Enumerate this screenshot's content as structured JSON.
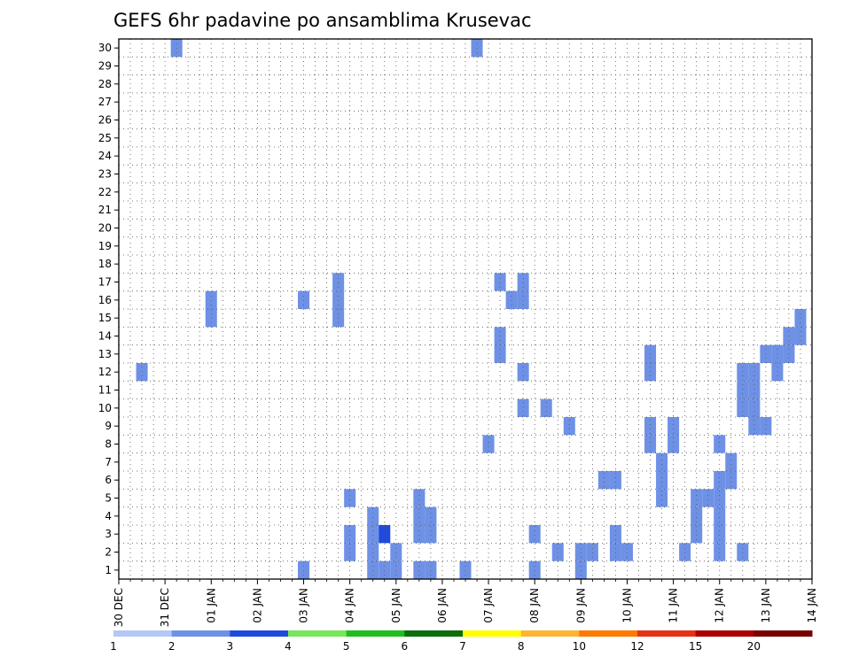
{
  "chart_data": {
    "type": "heatmap",
    "title": "GEFS 6hr padavine po ansamblima Krusevac",
    "y_ticks": [
      "1",
      "2",
      "3",
      "4",
      "5",
      "6",
      "7",
      "8",
      "9",
      "10",
      "11",
      "12",
      "13",
      "14",
      "15",
      "16",
      "17",
      "18",
      "19",
      "20",
      "21",
      "22",
      "23",
      "24",
      "25",
      "26",
      "27",
      "28",
      "29",
      "30"
    ],
    "x_ticks": [
      "30 DEC",
      "31 DEC",
      "01 JAN",
      "02 JAN",
      "03 JAN",
      "04 JAN",
      "05 JAN",
      "06 JAN",
      "07 JAN",
      "08 JAN",
      "09 JAN",
      "10 JAN",
      "11 JAN",
      "12 JAN",
      "13 JAN",
      "14 JAN"
    ],
    "grid": true,
    "legend": {
      "position": "bottom",
      "levels": [
        "1",
        "2",
        "3",
        "4",
        "5",
        "6",
        "7",
        "8",
        "10",
        "12",
        "15",
        "20"
      ],
      "colors": [
        "#b4c8f5",
        "#6e91e6",
        "#1e4bdc",
        "#78e65a",
        "#1ebe1e",
        "#0a6e0a",
        "#ffff00",
        "#ffb432",
        "#ff7800",
        "#e63214",
        "#aa0000",
        "#780000"
      ]
    },
    "time_unit": "6h steps from 00Z 30 DEC",
    "cells": [
      [
        2,
        12,
        1
      ],
      [
        5,
        30,
        1
      ],
      [
        8,
        15,
        1
      ],
      [
        8,
        16,
        1
      ],
      [
        16,
        1,
        1
      ],
      [
        16,
        16,
        1
      ],
      [
        19,
        15,
        1
      ],
      [
        19,
        16,
        1
      ],
      [
        19,
        17,
        1
      ],
      [
        20,
        2,
        1
      ],
      [
        20,
        3,
        1
      ],
      [
        20,
        5,
        1
      ],
      [
        22,
        1,
        1
      ],
      [
        22,
        2,
        1
      ],
      [
        22,
        3,
        1
      ],
      [
        22,
        4,
        1
      ],
      [
        23,
        1,
        1
      ],
      [
        23,
        3,
        2
      ],
      [
        24,
        1,
        1
      ],
      [
        24,
        2,
        1
      ],
      [
        26,
        1,
        1
      ],
      [
        26,
        3,
        1
      ],
      [
        26,
        4,
        1
      ],
      [
        26,
        5,
        1
      ],
      [
        27,
        1,
        1
      ],
      [
        27,
        3,
        1
      ],
      [
        27,
        4,
        1
      ],
      [
        30,
        1,
        1
      ],
      [
        31,
        30,
        1
      ],
      [
        32,
        8,
        1
      ],
      [
        33,
        13,
        1
      ],
      [
        33,
        14,
        1
      ],
      [
        33,
        17,
        1
      ],
      [
        34,
        16,
        1
      ],
      [
        35,
        10,
        1
      ],
      [
        35,
        12,
        1
      ],
      [
        35,
        16,
        1
      ],
      [
        35,
        17,
        1
      ],
      [
        36,
        1,
        1
      ],
      [
        36,
        3,
        1
      ],
      [
        37,
        10,
        1
      ],
      [
        38,
        2,
        1
      ],
      [
        39,
        9,
        1
      ],
      [
        40,
        2,
        1
      ],
      [
        40,
        1,
        1
      ],
      [
        41,
        2,
        1
      ],
      [
        42,
        6,
        1
      ],
      [
        43,
        2,
        1
      ],
      [
        43,
        3,
        1
      ],
      [
        43,
        6,
        1
      ],
      [
        44,
        2,
        1
      ],
      [
        46,
        8,
        1
      ],
      [
        46,
        9,
        1
      ],
      [
        46,
        12,
        1
      ],
      [
        46,
        13,
        1
      ],
      [
        47,
        5,
        1
      ],
      [
        47,
        6,
        1
      ],
      [
        47,
        7,
        1
      ],
      [
        48,
        8,
        1
      ],
      [
        48,
        9,
        1
      ],
      [
        49,
        2,
        1
      ],
      [
        50,
        3,
        1
      ],
      [
        50,
        4,
        1
      ],
      [
        50,
        5,
        1
      ],
      [
        51,
        5,
        1
      ],
      [
        52,
        2,
        1
      ],
      [
        52,
        3,
        1
      ],
      [
        52,
        4,
        1
      ],
      [
        52,
        5,
        1
      ],
      [
        52,
        6,
        1
      ],
      [
        52,
        8,
        1
      ],
      [
        53,
        6,
        1
      ],
      [
        53,
        7,
        1
      ],
      [
        54,
        2,
        1
      ],
      [
        54,
        10,
        1
      ],
      [
        54,
        11,
        1
      ],
      [
        54,
        12,
        1
      ],
      [
        55,
        9,
        1
      ],
      [
        55,
        10,
        1
      ],
      [
        55,
        11,
        1
      ],
      [
        55,
        12,
        1
      ],
      [
        56,
        9,
        1
      ],
      [
        56,
        13,
        1
      ],
      [
        57,
        12,
        1
      ],
      [
        57,
        13,
        1
      ],
      [
        58,
        13,
        1
      ],
      [
        58,
        14,
        1
      ],
      [
        59,
        14,
        1
      ],
      [
        59,
        15,
        1
      ]
    ]
  }
}
